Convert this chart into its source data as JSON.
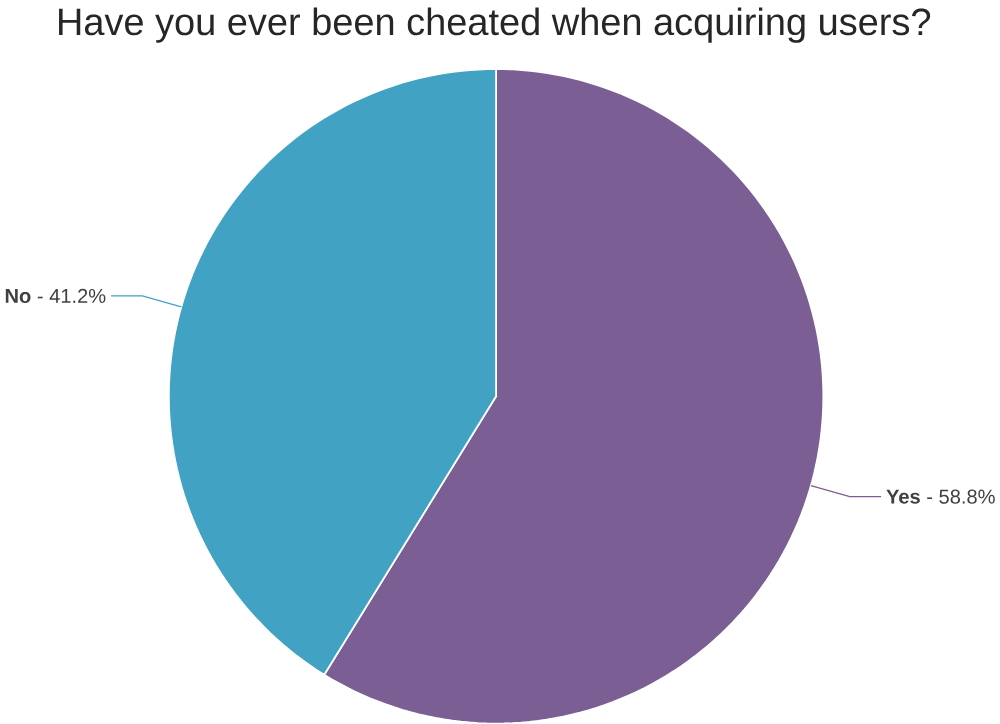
{
  "chart_data": {
    "type": "pie",
    "title": "Have you ever been cheated when acquiring users?",
    "categories": [
      "**Yes** -",
      "**No** -"
    ],
    "values": [
      58.8,
      41.2
    ],
    "value_labels": [
      "58.8%",
      "41.2%"
    ],
    "colors": [
      "#7b5e94",
      "#41a2c3"
    ]
  }
}
